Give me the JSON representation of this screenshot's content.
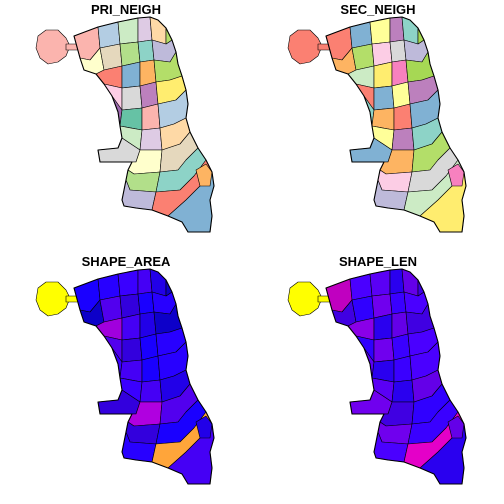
{
  "figure": {
    "panels": [
      {
        "title": "PRI_NEIGH",
        "palette": [
          "#fbb4ae",
          "#b3cde3",
          "#ccebc5",
          "#decbe4",
          "#fed9a6",
          "#ffffcc",
          "#e5d8bd",
          "#b2df8a",
          "#8dd3c7",
          "#bebada",
          "#fb8072",
          "#80b1d3",
          "#fdb462",
          "#b3de69",
          "#fccde5",
          "#d9d9d9",
          "#bc80bd",
          "#ffed6f",
          "#9e69b0",
          "#66c2a5"
        ]
      },
      {
        "title": "SEC_NEIGH",
        "palette": [
          "#fb8072",
          "#80b1d3",
          "#ffff99",
          "#bc80bd",
          "#8dd3c7",
          "#fdb462",
          "#b3de69",
          "#fccde5",
          "#d9d9d9",
          "#bebada",
          "#ccebc5",
          "#ffed6f",
          "#f781bf",
          "#a6d854"
        ]
      },
      {
        "title": "SHAPE_AREA",
        "palette": [
          "#1a00ff",
          "#2800ff",
          "#3a00ff",
          "#4500f5",
          "#2200e8",
          "#0d00c9",
          "#5200ee",
          "#3300dd"
        ],
        "highlights": {
          "north_blob": "#ffff00",
          "southeast": "#ffa53a",
          "mid_violet": "#b000e0",
          "west_violet": "#a100dd"
        }
      },
      {
        "title": "SHAPE_LEN",
        "palette": [
          "#3a00ff",
          "#4a00ff",
          "#5a00f5",
          "#2a00ef",
          "#6400e8",
          "#4000e2",
          "#3000ff",
          "#7000ee"
        ],
        "highlights": {
          "north_blob": "#ffff00",
          "southeast": "#e400c8",
          "northeast": "#c000c0",
          "west_violet": "#8a00e8"
        }
      }
    ]
  }
}
